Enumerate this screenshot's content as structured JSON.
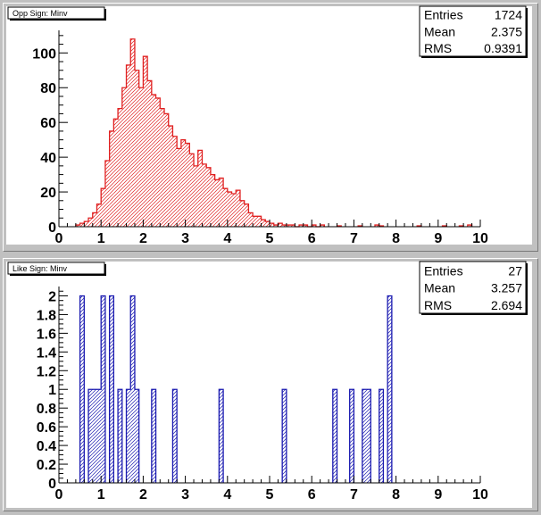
{
  "window": {
    "background": "#c0c0c0",
    "frame_background": "#ffffff"
  },
  "chart_data": [
    {
      "type": "bar",
      "title": "Opp Sign: Minv",
      "xlabel": "",
      "ylabel": "",
      "xlim": [
        0,
        10
      ],
      "ylim": [
        0,
        113
      ],
      "x_ticks": [
        "0",
        "1",
        "2",
        "3",
        "4",
        "5",
        "6",
        "7",
        "8",
        "9",
        "10"
      ],
      "y_ticks": [
        "0",
        "20",
        "40",
        "60",
        "80",
        "100"
      ],
      "y_tick_values": [
        0,
        20,
        40,
        60,
        80,
        100
      ],
      "bin_width": 0.1,
      "line_color": "#e02020",
      "fill_color": "#e02020",
      "fill_style": "diagonal-hatch",
      "stats": {
        "entries_label": "Entries",
        "entries": "1724",
        "mean_label": "Mean",
        "mean": "2.375",
        "rms_label": "RMS",
        "rms": "0.9391"
      },
      "bins": [
        [
          0.4,
          1
        ],
        [
          0.5,
          2
        ],
        [
          0.6,
          3
        ],
        [
          0.7,
          5
        ],
        [
          0.8,
          8
        ],
        [
          0.9,
          13
        ],
        [
          1.0,
          22
        ],
        [
          1.1,
          38
        ],
        [
          1.2,
          55
        ],
        [
          1.3,
          62
        ],
        [
          1.4,
          68
        ],
        [
          1.5,
          80
        ],
        [
          1.6,
          93
        ],
        [
          1.7,
          108
        ],
        [
          1.8,
          90
        ],
        [
          1.9,
          80
        ],
        [
          2.0,
          98
        ],
        [
          2.1,
          84
        ],
        [
          2.2,
          76
        ],
        [
          2.3,
          74
        ],
        [
          2.4,
          68
        ],
        [
          2.5,
          65
        ],
        [
          2.6,
          58
        ],
        [
          2.7,
          52
        ],
        [
          2.8,
          45
        ],
        [
          2.9,
          50
        ],
        [
          3.0,
          48
        ],
        [
          3.1,
          42
        ],
        [
          3.2,
          35
        ],
        [
          3.3,
          44
        ],
        [
          3.4,
          36
        ],
        [
          3.5,
          34
        ],
        [
          3.6,
          30
        ],
        [
          3.7,
          27
        ],
        [
          3.8,
          28
        ],
        [
          3.9,
          22
        ],
        [
          4.0,
          20
        ],
        [
          4.1,
          19
        ],
        [
          4.2,
          21
        ],
        [
          4.3,
          15
        ],
        [
          4.4,
          13
        ],
        [
          4.5,
          8
        ],
        [
          4.6,
          6
        ],
        [
          4.7,
          6
        ],
        [
          4.8,
          4
        ],
        [
          4.9,
          3
        ],
        [
          5.0,
          2
        ],
        [
          5.1,
          1
        ],
        [
          5.2,
          2
        ],
        [
          5.3,
          1
        ],
        [
          5.4,
          1
        ],
        [
          5.5,
          1
        ],
        [
          5.6,
          0
        ],
        [
          5.7,
          1
        ],
        [
          5.8,
          1
        ],
        [
          5.9,
          0
        ],
        [
          6.0,
          1
        ],
        [
          6.1,
          0
        ],
        [
          6.2,
          1
        ],
        [
          6.6,
          0.5
        ],
        [
          7.1,
          0.5
        ],
        [
          7.5,
          1
        ],
        [
          7.6,
          0.5
        ],
        [
          8.5,
          0.5
        ],
        [
          9.1,
          0.5
        ],
        [
          9.5,
          0.5
        ],
        [
          9.7,
          1
        ]
      ]
    },
    {
      "type": "bar",
      "title": "Like Sign: Minv",
      "xlabel": "",
      "ylabel": "",
      "xlim": [
        0,
        10
      ],
      "ylim": [
        0,
        2.1
      ],
      "x_ticks": [
        "0",
        "1",
        "2",
        "3",
        "4",
        "5",
        "6",
        "7",
        "8",
        "9",
        "10"
      ],
      "y_ticks": [
        "0",
        "0.2",
        "0.4",
        "0.6",
        "0.8",
        "1",
        "1.2",
        "1.4",
        "1.6",
        "1.8",
        "2"
      ],
      "y_tick_values": [
        0,
        0.2,
        0.4,
        0.6,
        0.8,
        1,
        1.2,
        1.4,
        1.6,
        1.8,
        2
      ],
      "bin_width": 0.1,
      "line_color": "#1a1ab0",
      "fill_color": "#1a1ab0",
      "fill_style": "diagonal-hatch",
      "stats": {
        "entries_label": "Entries",
        "entries": "27",
        "mean_label": "Mean",
        "mean": "3.257",
        "rms_label": "RMS",
        "rms": "2.694"
      },
      "bins": [
        [
          0.5,
          2
        ],
        [
          0.7,
          1
        ],
        [
          0.8,
          1
        ],
        [
          0.9,
          1
        ],
        [
          1.0,
          2
        ],
        [
          1.2,
          2
        ],
        [
          1.4,
          1
        ],
        [
          1.6,
          1
        ],
        [
          1.7,
          2
        ],
        [
          1.8,
          1
        ],
        [
          2.2,
          1
        ],
        [
          2.7,
          1
        ],
        [
          3.8,
          1
        ],
        [
          5.3,
          1
        ],
        [
          6.5,
          1
        ],
        [
          6.9,
          1
        ],
        [
          7.2,
          1
        ],
        [
          7.3,
          1
        ],
        [
          7.6,
          1
        ],
        [
          7.8,
          2
        ]
      ]
    }
  ]
}
